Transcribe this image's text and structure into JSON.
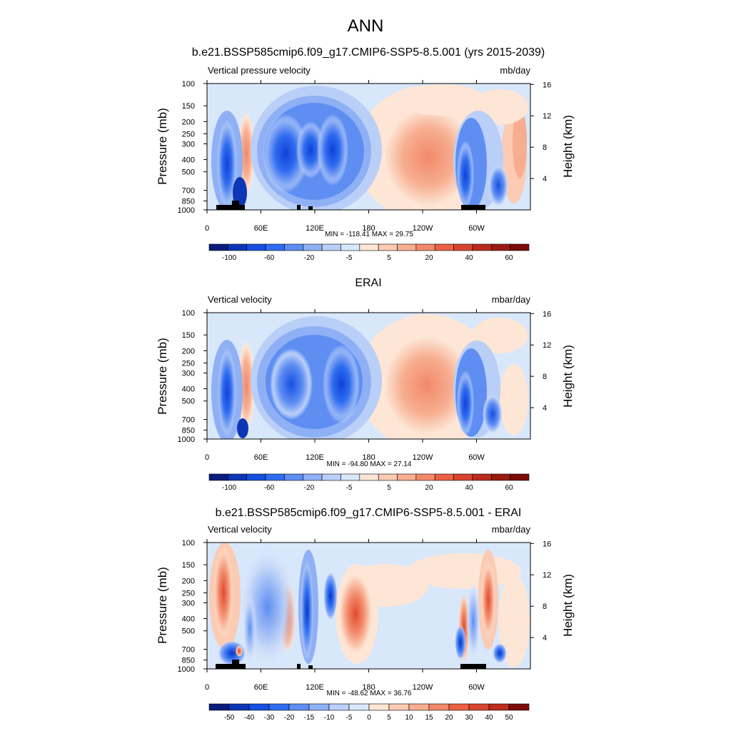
{
  "figure": {
    "title": "ANN"
  },
  "chart_data": [
    {
      "type": "heatmap",
      "panel_title": "b.e21.BSSP585cmip6.f09_g17.CMIP6-SSP5-8.5.001 (yrs 2015-2039)",
      "left_label": "Vertical pressure velocity",
      "right_label": "mb/day",
      "ylabel": "Pressure (mb)",
      "ylabel_right": "Height (km)",
      "pressure_ticks": [
        100,
        150,
        200,
        250,
        300,
        400,
        500,
        700,
        850,
        1000
      ],
      "height_ticks": [
        16,
        12,
        8,
        4
      ],
      "lon_tick_values": [
        0,
        60,
        120,
        180,
        240,
        300
      ],
      "lon_tick_labels": [
        "0",
        "60E",
        "120E",
        "180",
        "120W",
        "60W"
      ],
      "stats_text": "MIN = -118.41  MAX =  29.75",
      "min": -118.41,
      "max": 29.75,
      "colorbar_labels": [
        "-100",
        "-60",
        "-20",
        "-5",
        "5",
        "20",
        "40",
        "60"
      ],
      "colorbar_colors": [
        "#0a1d7c",
        "#0d36b6",
        "#1650e0",
        "#2f6cf0",
        "#5f8ef3",
        "#8fb0f5",
        "#b9cff7",
        "#d9e7fb",
        "#fde6d6",
        "#fbcbb3",
        "#f7ae90",
        "#f2896a",
        "#ec6044",
        "#d8452f",
        "#bb2b1e",
        "#9a1a12",
        "#7a0c0a"
      ],
      "values": [
        {
          "lon": 5,
          "level": 200,
          "value": -3
        },
        {
          "lon": 20,
          "level": 400,
          "value": -60
        },
        {
          "lon": 35,
          "level": 700,
          "value": -90
        },
        {
          "lon": 42,
          "level": 400,
          "value": 20
        },
        {
          "lon": 55,
          "level": 150,
          "value": -5
        },
        {
          "lon": 80,
          "level": 300,
          "value": -40
        },
        {
          "lon": 110,
          "level": 400,
          "value": -60
        },
        {
          "lon": 135,
          "level": 400,
          "value": -60
        },
        {
          "lon": 160,
          "level": 250,
          "value": -20
        },
        {
          "lon": 180,
          "level": 150,
          "value": -3
        },
        {
          "lon": 210,
          "level": 500,
          "value": 10
        },
        {
          "lon": 240,
          "level": 400,
          "value": 20
        },
        {
          "lon": 265,
          "level": 300,
          "value": 10
        },
        {
          "lon": 285,
          "level": 400,
          "value": -40
        },
        {
          "lon": 300,
          "level": 700,
          "value": -60
        },
        {
          "lon": 315,
          "level": 700,
          "value": -20
        },
        {
          "lon": 330,
          "level": 400,
          "value": 10
        },
        {
          "lon": 350,
          "level": 700,
          "value": 5
        }
      ]
    },
    {
      "type": "heatmap",
      "panel_title": "ERAI",
      "left_label": "Vertical velocity",
      "right_label": "mbar/day",
      "ylabel": "Pressure (mb)",
      "ylabel_right": "Height (km)",
      "pressure_ticks": [
        100,
        150,
        200,
        250,
        300,
        400,
        500,
        700,
        850,
        1000
      ],
      "height_ticks": [
        16,
        12,
        8,
        4
      ],
      "lon_tick_values": [
        0,
        60,
        120,
        180,
        240,
        300
      ],
      "lon_tick_labels": [
        "0",
        "60E",
        "120E",
        "180",
        "120W",
        "60W"
      ],
      "stats_text": "MIN = -94.80  MAX =  27.14",
      "min": -94.8,
      "max": 27.14,
      "colorbar_labels": [
        "-100",
        "-60",
        "-20",
        "-5",
        "5",
        "20",
        "40",
        "60"
      ],
      "colorbar_colors": [
        "#0a1d7c",
        "#0d36b6",
        "#1650e0",
        "#2f6cf0",
        "#5f8ef3",
        "#8fb0f5",
        "#b9cff7",
        "#d9e7fb",
        "#fde6d6",
        "#fbcbb3",
        "#f7ae90",
        "#f2896a",
        "#ec6044",
        "#d8452f",
        "#bb2b1e",
        "#9a1a12",
        "#7a0c0a"
      ],
      "values": [
        {
          "lon": 20,
          "level": 400,
          "value": -60
        },
        {
          "lon": 35,
          "level": 850,
          "value": -90
        },
        {
          "lon": 42,
          "level": 400,
          "value": 20
        },
        {
          "lon": 80,
          "level": 300,
          "value": -40
        },
        {
          "lon": 110,
          "level": 400,
          "value": -40
        },
        {
          "lon": 135,
          "level": 400,
          "value": -60
        },
        {
          "lon": 160,
          "level": 250,
          "value": -20
        },
        {
          "lon": 210,
          "level": 500,
          "value": 10
        },
        {
          "lon": 240,
          "level": 400,
          "value": 20
        },
        {
          "lon": 285,
          "level": 400,
          "value": -40
        },
        {
          "lon": 300,
          "level": 700,
          "value": -60
        },
        {
          "lon": 320,
          "level": 700,
          "value": -20
        },
        {
          "lon": 335,
          "level": 400,
          "value": 5
        }
      ]
    },
    {
      "type": "heatmap",
      "panel_title": "b.e21.BSSP585cmip6.f09_g17.CMIP6-SSP5-8.5.001 - ERAI",
      "left_label": "Vertical velocity",
      "right_label": "mbar/day",
      "ylabel": "Pressure (mb)",
      "ylabel_right": "Height (km)",
      "pressure_ticks": [
        100,
        150,
        200,
        250,
        300,
        400,
        500,
        700,
        850,
        1000
      ],
      "height_ticks": [
        16,
        12,
        8,
        4
      ],
      "lon_tick_values": [
        0,
        60,
        120,
        180,
        240,
        300
      ],
      "lon_tick_labels": [
        "0",
        "60E",
        "120E",
        "180",
        "120W",
        "60W"
      ],
      "stats_text": "MIN = -48.62  MAX =  36.76",
      "min": -48.62,
      "max": 36.76,
      "colorbar_labels": [
        "-50",
        "-40",
        "-30",
        "-20",
        "-15",
        "-10",
        "-5",
        "0",
        "5",
        "10",
        "15",
        "20",
        "30",
        "40",
        "50"
      ],
      "colorbar_colors": [
        "#0a1d7c",
        "#0d36b6",
        "#1650e0",
        "#2f6cf0",
        "#5f8ef3",
        "#8fb0f5",
        "#b9cff7",
        "#d9e7fb",
        "#fde6d6",
        "#fbcbb3",
        "#f7ae90",
        "#f2896a",
        "#ec6044",
        "#d8452f",
        "#bb2b1e",
        "#7a0c0a"
      ],
      "values": [
        {
          "lon": 15,
          "level": 250,
          "value": 20
        },
        {
          "lon": 30,
          "level": 850,
          "value": -30
        },
        {
          "lon": 40,
          "level": 400,
          "value": -10
        },
        {
          "lon": 60,
          "level": 300,
          "value": -10
        },
        {
          "lon": 90,
          "level": 400,
          "value": 20
        },
        {
          "lon": 110,
          "level": 400,
          "value": -30
        },
        {
          "lon": 135,
          "level": 250,
          "value": -20
        },
        {
          "lon": 160,
          "level": 500,
          "value": 15
        },
        {
          "lon": 200,
          "level": 300,
          "value": 5
        },
        {
          "lon": 240,
          "level": 500,
          "value": -3
        },
        {
          "lon": 285,
          "level": 500,
          "value": 20
        },
        {
          "lon": 300,
          "level": 500,
          "value": -20
        },
        {
          "lon": 320,
          "level": 400,
          "value": 20
        },
        {
          "lon": 340,
          "level": 400,
          "value": 5
        }
      ]
    }
  ]
}
